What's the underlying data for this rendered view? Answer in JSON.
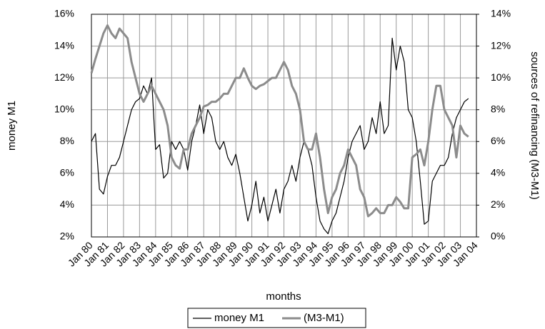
{
  "chart_data": {
    "type": "line",
    "x_label": "months",
    "y_label": "money M1",
    "y2_label": "sources of refinancing (M3-M1)",
    "x": [
      1980,
      1980.25,
      1980.5,
      1980.75,
      1981,
      1981.25,
      1981.5,
      1981.75,
      1982,
      1982.25,
      1982.5,
      1982.75,
      1983,
      1983.25,
      1983.5,
      1983.75,
      1984,
      1984.25,
      1984.5,
      1984.75,
      1985,
      1985.25,
      1985.5,
      1985.75,
      1986,
      1986.25,
      1986.5,
      1986.75,
      1987,
      1987.25,
      1987.5,
      1987.75,
      1988,
      1988.25,
      1988.5,
      1988.75,
      1989,
      1989.25,
      1989.5,
      1989.75,
      1990,
      1990.25,
      1990.5,
      1990.75,
      1991,
      1991.25,
      1991.5,
      1991.75,
      1992,
      1992.25,
      1992.5,
      1992.75,
      1993,
      1993.25,
      1993.5,
      1993.75,
      1994,
      1994.25,
      1994.5,
      1994.75,
      1995,
      1995.25,
      1995.5,
      1995.75,
      1996,
      1996.25,
      1996.5,
      1996.75,
      1997,
      1997.25,
      1997.5,
      1997.75,
      1998,
      1998.25,
      1998.5,
      1998.75,
      1999,
      1999.25,
      1999.5,
      1999.75,
      2000,
      2000.25,
      2000.5,
      2000.75,
      2001,
      2001.25,
      2001.5,
      2001.75,
      2002,
      2002.25,
      2002.5,
      2002.75,
      2003,
      2003.25,
      2003.5
    ],
    "series": [
      {
        "name": "money M1",
        "color": "#000000",
        "width": 1.2,
        "axis": "y",
        "values": [
          8.0,
          8.5,
          5.0,
          4.7,
          5.8,
          6.5,
          6.5,
          7.0,
          8.0,
          9.0,
          10.0,
          10.5,
          10.7,
          11.5,
          11.0,
          12.0,
          7.5,
          7.8,
          5.7,
          6.0,
          8.0,
          7.5,
          8.0,
          7.5,
          6.2,
          8.0,
          9.0,
          10.3,
          8.5,
          10.0,
          9.5,
          8.0,
          7.5,
          8.0,
          7.0,
          6.5,
          7.2,
          6.0,
          4.5,
          3.0,
          4.0,
          5.5,
          3.5,
          4.5,
          3.0,
          4.0,
          5.0,
          3.5,
          5.0,
          5.5,
          6.5,
          5.5,
          7.0,
          8.0,
          7.5,
          6.5,
          4.5,
          3.0,
          2.5,
          2.2,
          3.0,
          3.5,
          4.5,
          5.5,
          7.0,
          8.0,
          8.5,
          9.0,
          7.5,
          8.0,
          9.5,
          8.5,
          10.5,
          8.5,
          9.0,
          14.5,
          12.5,
          14.0,
          13.0,
          10.0,
          9.5,
          8.0,
          5.5,
          2.8,
          3.0,
          5.5,
          6.0,
          6.5,
          6.5,
          7.0,
          8.5,
          9.5,
          10.0,
          10.5,
          10.7
        ]
      },
      {
        "name": "(M3-M1)",
        "color": "#8c8c8c",
        "width": 3,
        "axis": "y2",
        "values": [
          10.3,
          11.2,
          12.0,
          12.8,
          13.3,
          12.8,
          12.5,
          13.1,
          12.8,
          12.5,
          11.0,
          10.0,
          9.0,
          8.5,
          9.0,
          9.5,
          9.0,
          8.5,
          8.0,
          7.0,
          5.0,
          4.5,
          4.3,
          5.5,
          5.5,
          6.5,
          7.0,
          7.5,
          8.2,
          8.3,
          8.5,
          8.5,
          8.7,
          9.0,
          9.0,
          9.5,
          10.0,
          10.0,
          10.6,
          10.0,
          9.5,
          9.3,
          9.5,
          9.6,
          9.8,
          10.0,
          10.0,
          10.5,
          11.0,
          10.5,
          9.5,
          9.0,
          8.0,
          6.0,
          5.5,
          5.5,
          6.5,
          5.0,
          3.0,
          1.5,
          2.5,
          3.0,
          4.0,
          4.5,
          5.5,
          5.0,
          4.5,
          3.0,
          2.5,
          1.3,
          1.5,
          1.8,
          1.5,
          1.5,
          2.0,
          2.0,
          2.5,
          2.2,
          1.8,
          1.8,
          5.0,
          5.2,
          5.5,
          4.5,
          6.0,
          8.0,
          9.5,
          9.5,
          8.0,
          7.5,
          7.0,
          5.0,
          7.0,
          6.5,
          6.3
        ]
      }
    ],
    "xlim": [
      1980,
      2004
    ],
    "xticks": [
      {
        "value": 1980,
        "label": "Jan 80"
      },
      {
        "value": 1981,
        "label": "Jan 81"
      },
      {
        "value": 1982,
        "label": "Jan 82"
      },
      {
        "value": 1983,
        "label": "Jan 83"
      },
      {
        "value": 1984,
        "label": "Jan 84"
      },
      {
        "value": 1985,
        "label": "Jan 85"
      },
      {
        "value": 1986,
        "label": "Jan 86"
      },
      {
        "value": 1987,
        "label": "Jan 87"
      },
      {
        "value": 1988,
        "label": "Jan 88"
      },
      {
        "value": 1989,
        "label": "Jan 89"
      },
      {
        "value": 1990,
        "label": "Jan 90"
      },
      {
        "value": 1991,
        "label": "Jan 91"
      },
      {
        "value": 1992,
        "label": "Jan 92"
      },
      {
        "value": 1993,
        "label": "Jan 93"
      },
      {
        "value": 1994,
        "label": "Jan 94"
      },
      {
        "value": 1995,
        "label": "Jan 95"
      },
      {
        "value": 1996,
        "label": "Jan 96"
      },
      {
        "value": 1997,
        "label": "Jan 97"
      },
      {
        "value": 1998,
        "label": "Jan 98"
      },
      {
        "value": 1999,
        "label": "Jan 99"
      },
      {
        "value": 2000,
        "label": "Jan 00"
      },
      {
        "value": 2001,
        "label": "Jan 01"
      },
      {
        "value": 2002,
        "label": "Jan 02"
      },
      {
        "value": 2003,
        "label": "Jan 03"
      },
      {
        "value": 2004,
        "label": "Jan 04"
      }
    ],
    "ylim": [
      2,
      16
    ],
    "yticks": [
      {
        "value": 2,
        "label": "2%"
      },
      {
        "value": 4,
        "label": "4%"
      },
      {
        "value": 6,
        "label": "6%"
      },
      {
        "value": 8,
        "label": "8%"
      },
      {
        "value": 10,
        "label": "10%"
      },
      {
        "value": 12,
        "label": "12%"
      },
      {
        "value": 14,
        "label": "14%"
      },
      {
        "value": 16,
        "label": "16%"
      }
    ],
    "y2lim": [
      0,
      14
    ],
    "y2ticks": [
      {
        "value": 0,
        "label": "0%"
      },
      {
        "value": 2,
        "label": "2%"
      },
      {
        "value": 4,
        "label": "4%"
      },
      {
        "value": 6,
        "label": "6%"
      },
      {
        "value": 8,
        "label": "8%"
      },
      {
        "value": 10,
        "label": "10%"
      },
      {
        "value": 12,
        "label": "12%"
      },
      {
        "value": 14,
        "label": "14%"
      }
    ],
    "grid": true,
    "legend": "bottom"
  }
}
